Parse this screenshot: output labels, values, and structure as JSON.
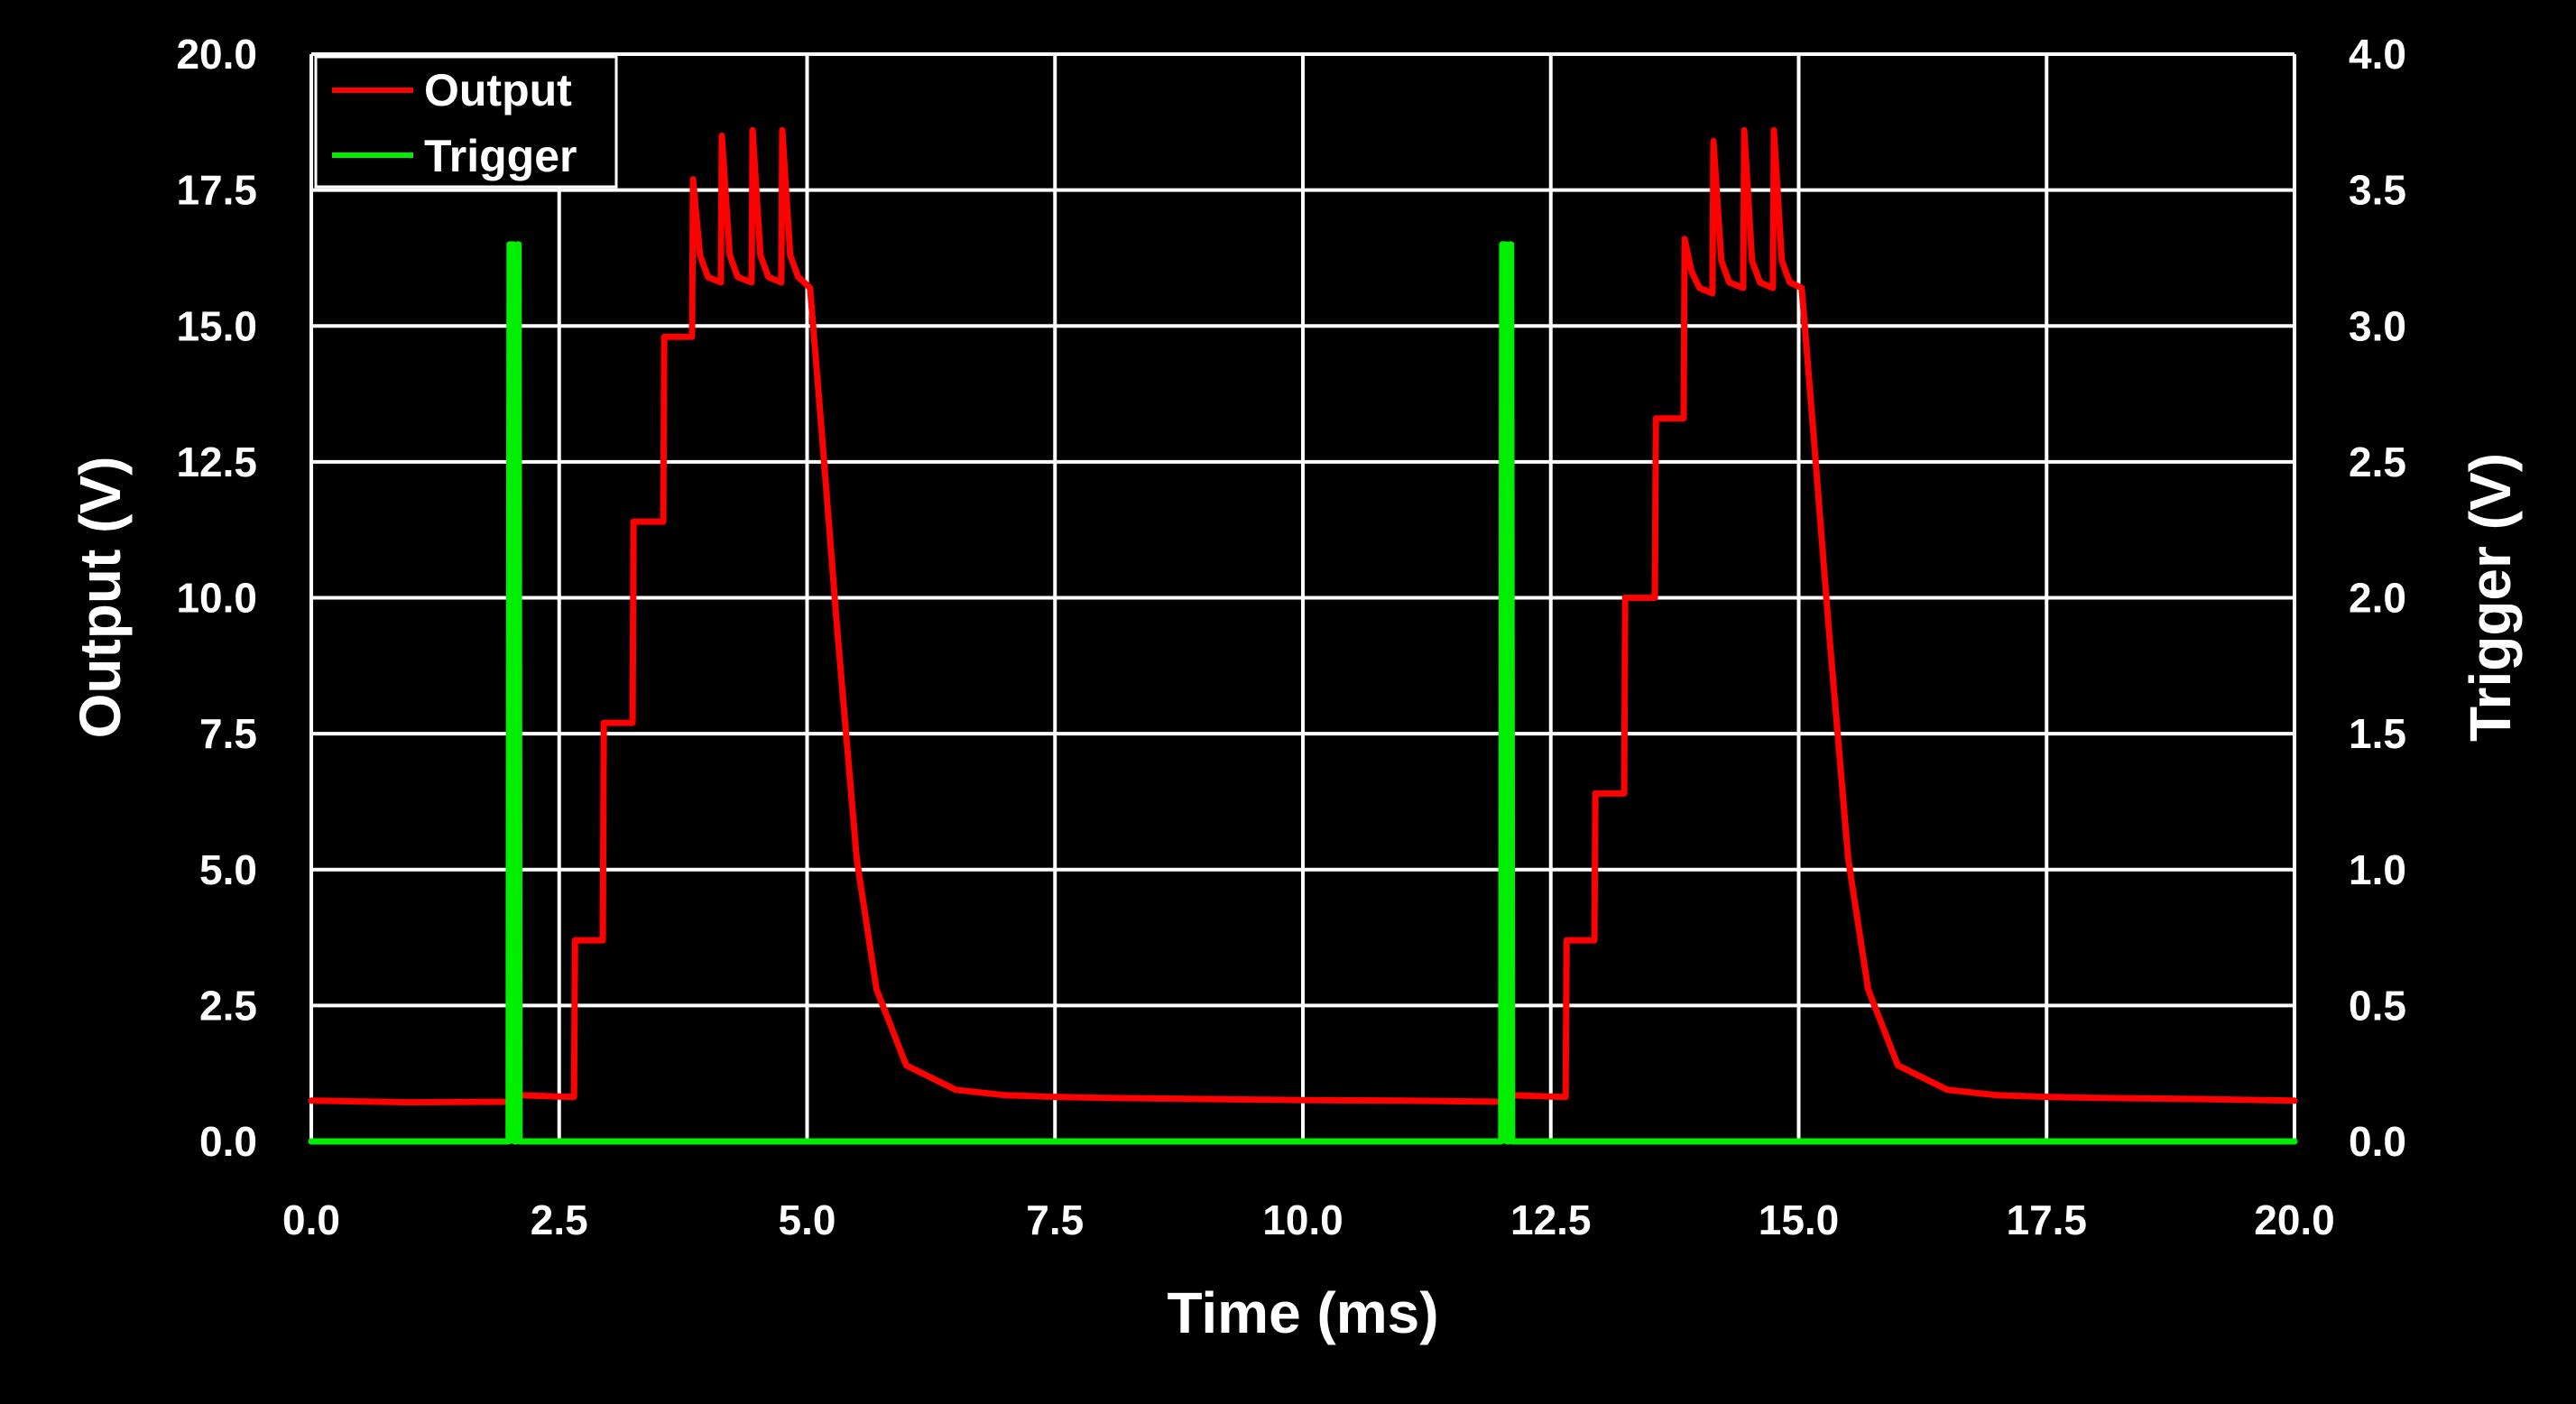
{
  "chart_data": {
    "type": "line",
    "title": "",
    "xlabel": "Time (ms)",
    "ylabel": "Output (V)",
    "y2label": "Trigger (V)",
    "xlim": [
      0,
      20
    ],
    "ylim": [
      0,
      20
    ],
    "y2lim": [
      0,
      4
    ],
    "grid": true,
    "legend_position": "top-left",
    "background": "#000000",
    "grid_color": "#ffffff",
    "x_ticks": [
      "0.0",
      "2.5",
      "5.0",
      "7.5",
      "10.0",
      "12.5",
      "15.0",
      "17.5",
      "20.0"
    ],
    "y_ticks": [
      "0.0",
      "2.5",
      "5.0",
      "7.5",
      "10.0",
      "12.5",
      "15.0",
      "17.5",
      "20.0"
    ],
    "y2_ticks": [
      "0.0",
      "0.5",
      "1.0",
      "1.5",
      "2.0",
      "2.5",
      "3.0",
      "3.5",
      "4.0"
    ],
    "series": [
      {
        "name": "Output",
        "axis": "left",
        "color": "#ff0000",
        "x": [
          0,
          1.0,
          2.0,
          2.1,
          2.6,
          2.65,
          2.66,
          2.94,
          2.95,
          3.24,
          3.25,
          3.55,
          3.56,
          3.84,
          3.85,
          3.92,
          4.0,
          4.13,
          4.14,
          4.22,
          4.3,
          4.44,
          4.45,
          4.53,
          4.61,
          4.74,
          4.75,
          4.83,
          4.91,
          5.03,
          5.15,
          5.3,
          5.5,
          5.7,
          6.0,
          6.5,
          7.0,
          7.5,
          8.0,
          9.0,
          10.0,
          11.0,
          12.0,
          12.1,
          12.6,
          12.65,
          12.66,
          12.94,
          12.95,
          13.24,
          13.25,
          13.55,
          13.56,
          13.84,
          13.85,
          13.92,
          14.0,
          14.13,
          14.14,
          14.22,
          14.3,
          14.44,
          14.45,
          14.53,
          14.61,
          14.74,
          14.75,
          14.83,
          14.91,
          15.03,
          15.15,
          15.3,
          15.5,
          15.7,
          16.0,
          16.5,
          17.0,
          17.5,
          18.0,
          19.0,
          20.0
        ],
        "values": [
          0.75,
          0.72,
          0.73,
          0.85,
          0.82,
          0.82,
          3.7,
          3.7,
          7.7,
          7.7,
          11.4,
          11.4,
          14.8,
          14.8,
          17.7,
          16.3,
          15.9,
          15.8,
          18.5,
          16.3,
          15.9,
          15.8,
          18.6,
          16.3,
          15.9,
          15.8,
          18.6,
          16.3,
          15.9,
          15.7,
          13.0,
          9.5,
          5.2,
          2.8,
          1.4,
          0.95,
          0.85,
          0.82,
          0.8,
          0.78,
          0.76,
          0.75,
          0.73,
          0.85,
          0.82,
          0.82,
          3.7,
          3.7,
          6.4,
          6.4,
          10.0,
          10.0,
          13.3,
          13.3,
          16.6,
          16.0,
          15.7,
          15.6,
          18.4,
          16.2,
          15.8,
          15.7,
          18.6,
          16.2,
          15.8,
          15.7,
          18.6,
          16.2,
          15.8,
          15.7,
          13.0,
          9.5,
          5.2,
          2.8,
          1.4,
          0.95,
          0.85,
          0.82,
          0.8,
          0.78,
          0.75
        ]
      },
      {
        "name": "Trigger",
        "axis": "right",
        "color": "#00ee00",
        "x": [
          0,
          1.99,
          2.0,
          2.04,
          2.05,
          2.07,
          2.08,
          2.09,
          2.1,
          12.0,
          12.01,
          12.05,
          12.06,
          12.08,
          12.09,
          12.1,
          12.11,
          20.0
        ],
        "values": [
          0,
          0,
          3.3,
          3.3,
          0,
          0,
          3.3,
          3.3,
          0,
          0,
          3.3,
          3.3,
          0,
          0,
          3.3,
          3.3,
          0,
          0
        ]
      }
    ]
  }
}
